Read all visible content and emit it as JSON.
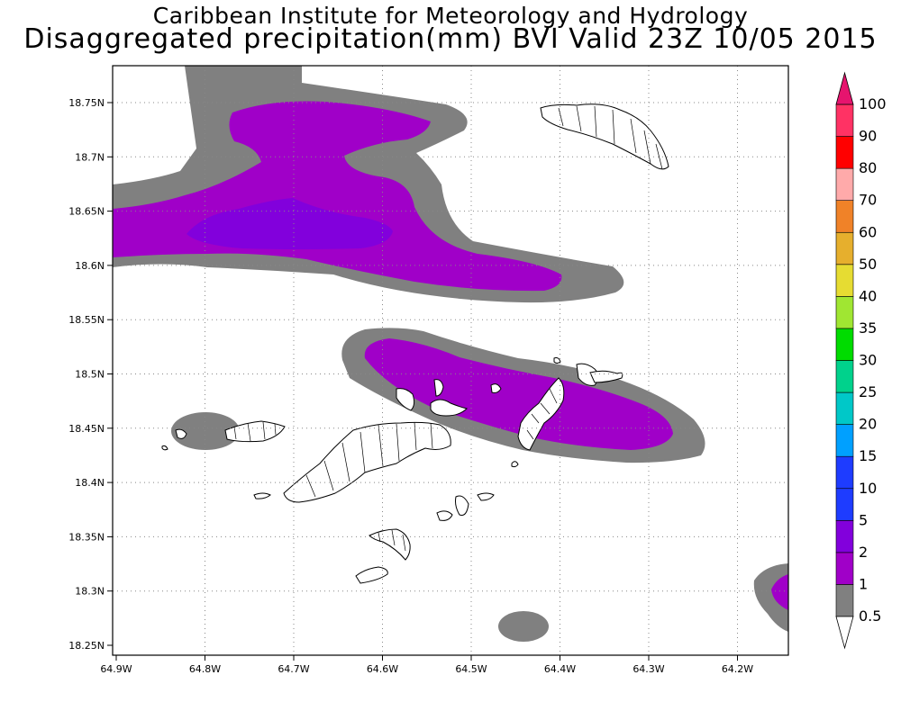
{
  "header": {
    "line1": "Caribbean Institute for Meteorology and Hydrology",
    "line2": "Disaggregated precipitation(mm) BVI Valid 23Z 10/05 2015"
  },
  "axes": {
    "x_ticks": [
      "64.9W",
      "64.8W",
      "64.7W",
      "64.6W",
      "64.5W",
      "64.4W",
      "64.3W",
      "64.2W"
    ],
    "y_ticks": [
      "18.75N",
      "18.7N",
      "18.65N",
      "18.6N",
      "18.55N",
      "18.5N",
      "18.45N",
      "18.4N",
      "18.35N",
      "18.3N",
      "18.25N"
    ],
    "grid": "dotted"
  },
  "colorbar": {
    "labels": [
      "0.5",
      "1",
      "2",
      "5",
      "10",
      "15",
      "20",
      "25",
      "30",
      "35",
      "40",
      "50",
      "60",
      "70",
      "80",
      "90",
      "100"
    ],
    "colors": [
      "#ffffff",
      "#808080",
      "#a000c8",
      "#8200dc",
      "#1e3cff",
      "#1e3cff",
      "#00a0ff",
      "#00c8c8",
      "#00d28c",
      "#00dc00",
      "#a0e632",
      "#e6dc32",
      "#e6af2d",
      "#f08228",
      "#ffaaaa",
      "#ff0000",
      "#ff3264",
      "#e6146e"
    ],
    "color_notes": {
      "over_1mm": "#808080",
      "over_2mm": "#a000c8",
      "over_5mm": "#8200dc"
    }
  }
}
